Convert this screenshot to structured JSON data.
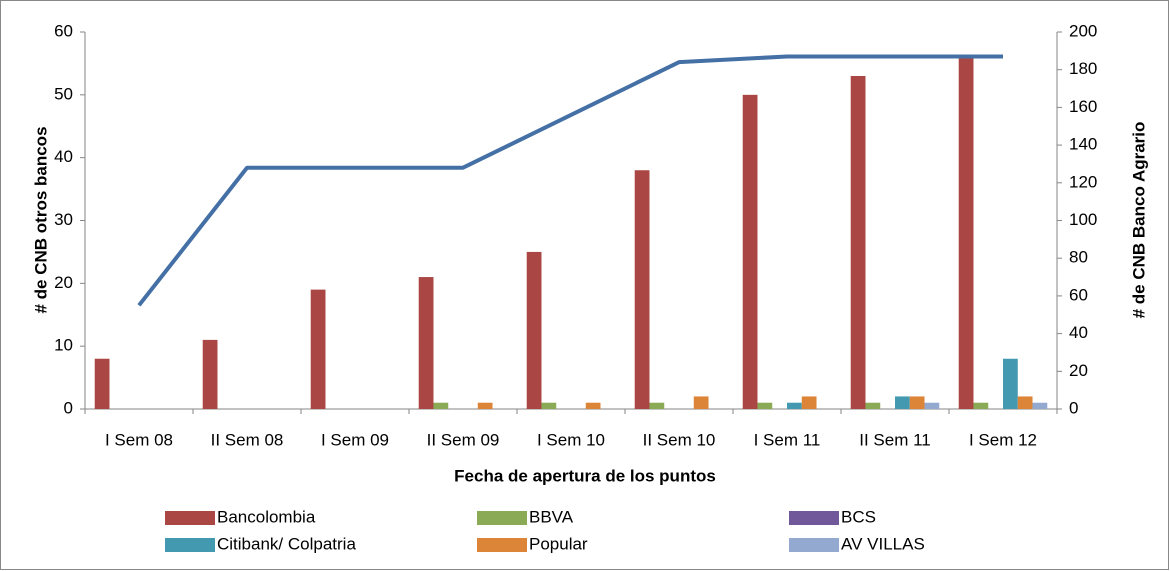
{
  "chart_data": {
    "type": "bar",
    "xlabel": "Fecha de apertura de los puntos",
    "ylabel": "# de CNB otros bancos",
    "y2label": "# de CNB Banco  Agrario",
    "categories": [
      "I Sem 08",
      "II Sem 08",
      "I Sem 09",
      "II Sem 09",
      "I Sem 10",
      "II Sem 10",
      "I Sem 11",
      "II Sem 11",
      "I Sem 12"
    ],
    "series": [
      {
        "name": "Bancolombia",
        "color": "#aa4744",
        "values": [
          8,
          11,
          19,
          21,
          25,
          38,
          50,
          53,
          56
        ]
      },
      {
        "name": "BBVA",
        "color": "#8aaa55",
        "values": [
          0,
          0,
          0,
          1,
          1,
          1,
          1,
          1,
          1
        ]
      },
      {
        "name": "BCS",
        "color": "#71589a",
        "values": [
          0,
          0,
          0,
          0,
          0,
          0,
          0,
          0,
          0
        ]
      },
      {
        "name": "Citibank/ Colpatria",
        "color": "#4299b0",
        "values": [
          0,
          0,
          0,
          0,
          0,
          0,
          1,
          2,
          8
        ]
      },
      {
        "name": "Popular",
        "color": "#dc8539",
        "values": [
          0,
          0,
          0,
          1,
          1,
          2,
          2,
          2,
          2
        ]
      },
      {
        "name": "AV VILLAS",
        "color": "#93a9d0",
        "values": [
          0,
          0,
          0,
          0,
          0,
          0,
          0,
          1,
          1
        ]
      },
      {
        "type": "line",
        "axis": "y2",
        "color": "#4470a5",
        "values": [
          55,
          128,
          128,
          128,
          156,
          184,
          187,
          187,
          187
        ]
      }
    ],
    "ylim": [
      0,
      60
    ],
    "yticks": [
      0,
      10,
      20,
      30,
      40,
      50,
      60
    ],
    "y2lim": [
      0,
      200
    ],
    "y2ticks": [
      0,
      20,
      40,
      60,
      80,
      100,
      120,
      140,
      160,
      180,
      200
    ],
    "grid": false,
    "legend": "bottom"
  }
}
